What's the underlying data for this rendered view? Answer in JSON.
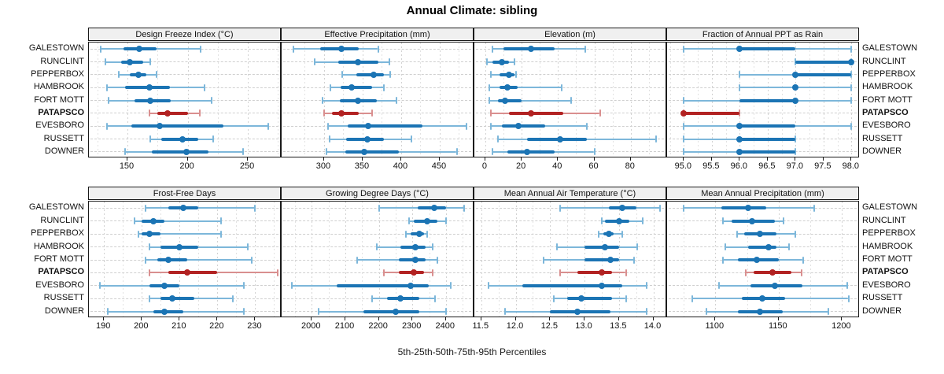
{
  "chart_data": {
    "type": "dot-interval",
    "title": "Annual Climate: sibling",
    "xlabel": "5th-25th-50th-75th-95th Percentiles",
    "percentiles": [
      5,
      25,
      50,
      75,
      95
    ],
    "legend_position": "none",
    "grid": "dotted",
    "categories": [
      "GALESTOWN",
      "RUNCLINT",
      "PEPPERBOX",
      "HAMBROOK",
      "FORT MOTT",
      "PATAPSCO",
      "EVESBORO",
      "RUSSETT",
      "DOWNER"
    ],
    "highlight_category": "PATAPSCO",
    "colors": {
      "normal": "#1b74b4",
      "normal_light": "#7db7da",
      "highlight": "#b22222",
      "highlight_light": "#d98f8f",
      "header_bg": "#f0f0f0",
      "border": "#1a1a1a"
    },
    "panels": [
      {
        "title": "Design Freeze Index (°C)",
        "row": 0,
        "col": 0,
        "xlim": [
          118,
          278
        ],
        "ticks": [
          150,
          200,
          250
        ],
        "tick_labels": [
          "150",
          "200",
          "250"
        ],
        "series": [
          [
            128,
            147,
            160,
            174,
            211
          ],
          [
            132,
            145,
            152,
            163,
            169
          ],
          [
            143,
            152,
            159,
            166,
            174
          ],
          [
            133,
            148,
            168,
            185,
            214
          ],
          [
            134,
            156,
            169,
            186,
            220
          ],
          [
            168,
            175,
            183,
            200,
            210
          ],
          [
            133,
            153,
            177,
            230,
            267
          ],
          [
            169,
            178,
            196,
            209,
            221
          ],
          [
            148,
            170,
            199,
            217,
            246
          ]
        ]
      },
      {
        "title": "Effective Precipitation (mm)",
        "row": 0,
        "col": 1,
        "xlim": [
          245,
          495
        ],
        "ticks": [
          300,
          350,
          400,
          450
        ],
        "tick_labels": [
          "300",
          "350",
          "400",
          "450"
        ],
        "series": [
          [
            260,
            295,
            322,
            345,
            370
          ],
          [
            288,
            318,
            344,
            370,
            385
          ],
          [
            324,
            342,
            364,
            378,
            386
          ],
          [
            308,
            321,
            336,
            362,
            378
          ],
          [
            298,
            320,
            344,
            368,
            394
          ],
          [
            300,
            310,
            322,
            345,
            362
          ],
          [
            305,
            331,
            357,
            428,
            485
          ],
          [
            307,
            329,
            356,
            378,
            413
          ],
          [
            303,
            328,
            352,
            397,
            472
          ]
        ]
      },
      {
        "title": "Elevation (m)",
        "row": 0,
        "col": 2,
        "xlim": [
          -6,
          100
        ],
        "ticks": [
          0,
          20,
          40,
          60,
          80
        ],
        "tick_labels": [
          "0",
          "20",
          "40",
          "60",
          "80"
        ],
        "series": [
          [
            4,
            10,
            25,
            38,
            55
          ],
          [
            1,
            4,
            9,
            13,
            16
          ],
          [
            3,
            8,
            13,
            16,
            17
          ],
          [
            2,
            8,
            12,
            18,
            42
          ],
          [
            2,
            7,
            11,
            20,
            47
          ],
          [
            3,
            13,
            25,
            43,
            63
          ],
          [
            3,
            9,
            18,
            33,
            56
          ],
          [
            7,
            23,
            41,
            56,
            94
          ],
          [
            4,
            12,
            23,
            38,
            60
          ]
        ]
      },
      {
        "title": "Fraction of Annual PPT as Rain",
        "row": 0,
        "col": 3,
        "xlim": [
          94.7,
          98.15
        ],
        "ticks": [
          95.0,
          95.5,
          96.0,
          96.5,
          97.0,
          97.5,
          98.0
        ],
        "tick_labels": [
          "95.0",
          "95.5",
          "96.0",
          "96.5",
          "97.0",
          "97.5",
          "98.0"
        ],
        "series": [
          [
            95,
            96,
            96,
            97,
            98
          ],
          [
            97,
            97,
            98,
            98,
            98
          ],
          [
            96,
            97,
            97,
            98,
            98
          ],
          [
            96,
            97,
            97,
            97,
            98
          ],
          [
            95,
            96,
            97,
            97,
            98
          ],
          [
            95,
            95,
            95,
            96,
            96
          ],
          [
            95,
            96,
            96,
            97,
            98
          ],
          [
            95,
            96,
            96,
            97,
            97
          ],
          [
            95,
            96,
            96,
            97,
            97
          ]
        ]
      },
      {
        "title": "Frost-Free Days",
        "row": 1,
        "col": 0,
        "xlim": [
          186,
          237
        ],
        "ticks": [
          190,
          200,
          210,
          220,
          230
        ],
        "tick_labels": [
          "190",
          "200",
          "210",
          "220",
          "230"
        ],
        "series": [
          [
            201,
            207,
            211,
            215,
            230
          ],
          [
            198,
            200,
            203,
            206,
            221
          ],
          [
            199,
            200,
            202,
            205,
            221
          ],
          [
            202,
            205,
            210,
            215,
            228
          ],
          [
            201,
            204,
            207,
            212,
            229
          ],
          [
            202,
            207,
            212,
            220,
            236
          ],
          [
            189,
            202,
            206,
            210,
            227
          ],
          [
            202,
            205,
            208,
            214,
            224
          ],
          [
            191,
            203,
            206,
            211,
            227
          ]
        ]
      },
      {
        "title": "Growing Degree Days (°C)",
        "row": 1,
        "col": 1,
        "xlim": [
          1910,
          2485
        ],
        "ticks": [
          2000,
          2100,
          2200,
          2300,
          2400
        ],
        "tick_labels": [
          "2000",
          "2100",
          "2200",
          "2300",
          "2400"
        ],
        "series": [
          [
            2200,
            2315,
            2365,
            2400,
            2455
          ],
          [
            2290,
            2305,
            2345,
            2375,
            2400
          ],
          [
            2280,
            2295,
            2320,
            2335,
            2345
          ],
          [
            2195,
            2265,
            2310,
            2340,
            2360
          ],
          [
            2135,
            2260,
            2310,
            2340,
            2375
          ],
          [
            2215,
            2260,
            2305,
            2335,
            2360
          ],
          [
            1940,
            2075,
            2295,
            2350,
            2415
          ],
          [
            2180,
            2225,
            2265,
            2320,
            2368
          ],
          [
            2020,
            2155,
            2250,
            2320,
            2400
          ]
        ]
      },
      {
        "title": "Mean Annual Air Temperature (°C)",
        "row": 1,
        "col": 2,
        "xlim": [
          11.4,
          14.2
        ],
        "ticks": [
          11.5,
          12.0,
          12.5,
          13.0,
          13.5,
          14.0
        ],
        "tick_labels": [
          "11.5",
          "12.0",
          "12.5",
          "13.0",
          "13.5",
          "14.0"
        ],
        "series": [
          [
            12.65,
            13.35,
            13.55,
            13.75,
            14.1
          ],
          [
            13.25,
            13.3,
            13.5,
            13.65,
            13.85
          ],
          [
            13.2,
            13.27,
            13.35,
            13.42,
            13.55
          ],
          [
            12.6,
            13.0,
            13.3,
            13.5,
            13.77
          ],
          [
            12.4,
            13.0,
            13.38,
            13.5,
            13.72
          ],
          [
            12.65,
            12.9,
            13.25,
            13.4,
            13.6
          ],
          [
            11.6,
            12.1,
            13.25,
            13.55,
            13.9
          ],
          [
            12.55,
            12.75,
            12.95,
            13.4,
            13.6
          ],
          [
            11.85,
            12.5,
            12.9,
            13.38,
            13.9
          ]
        ]
      },
      {
        "title": "Mean Annual Precipitation (mm)",
        "row": 1,
        "col": 3,
        "xlim": [
          1062,
          1214
        ],
        "ticks": [
          1100,
          1150,
          1200
        ],
        "tick_labels": [
          "1100",
          "1150",
          "1200"
        ],
        "series": [
          [
            1075,
            1105,
            1126,
            1140,
            1178
          ],
          [
            1106,
            1113,
            1129,
            1147,
            1154
          ],
          [
            1117,
            1123,
            1135,
            1148,
            1163
          ],
          [
            1108,
            1126,
            1142,
            1148,
            1158
          ],
          [
            1106,
            1118,
            1133,
            1150,
            1169
          ],
          [
            1124,
            1130,
            1145,
            1160,
            1168
          ],
          [
            1103,
            1128,
            1147,
            1169,
            1204
          ],
          [
            1082,
            1121,
            1137,
            1155,
            1205
          ],
          [
            1093,
            1118,
            1135,
            1153,
            1189
          ]
        ]
      }
    ]
  }
}
